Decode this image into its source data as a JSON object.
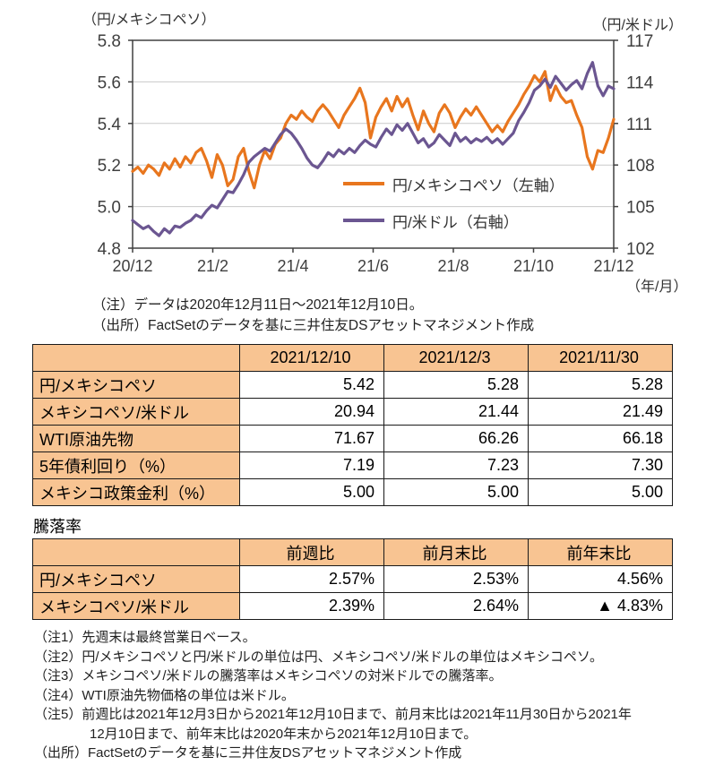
{
  "chart": {
    "left_axis_unit": "（円/メキシコペソ）",
    "right_axis_unit": "（円/米ドル）",
    "x_axis_unit": "（年/月）",
    "note": "（注）データは2020年12月11日～2021年12月10日。",
    "source": "（出所）FactSetのデータを基に三井住友DSアセットマネジメント作成"
  },
  "chart_data": {
    "type": "line",
    "grid": "horizontal",
    "legend_position": "inside-right",
    "x_axis": {
      "tick_labels": [
        "20/12",
        "21/2",
        "21/4",
        "21/6",
        "21/8",
        "21/10",
        "21/12"
      ],
      "unit": "（年/月）"
    },
    "left_axis": {
      "label": "（円/メキシコペソ）",
      "min": 4.8,
      "max": 5.8,
      "tick_values": [
        5.8,
        5.6,
        5.4,
        5.2,
        5.0,
        4.8
      ],
      "tick_labels": [
        "5.8",
        "5.6",
        "5.4",
        "5.2",
        "5.0",
        "4.8"
      ]
    },
    "right_axis": {
      "label": "（円/米ドル）",
      "min": 102,
      "max": 117,
      "tick_values": [
        117,
        114,
        111,
        108,
        105,
        102
      ],
      "tick_labels": [
        "117",
        "114",
        "111",
        "108",
        "105",
        "102"
      ]
    },
    "series": [
      {
        "name": "円/メキシコペソ（左軸）",
        "axis": "left",
        "color": "#E8761E",
        "values": [
          5.17,
          5.19,
          5.16,
          5.2,
          5.18,
          5.15,
          5.21,
          5.18,
          5.23,
          5.19,
          5.24,
          5.21,
          5.26,
          5.28,
          5.22,
          5.14,
          5.25,
          5.2,
          5.1,
          5.13,
          5.24,
          5.28,
          5.17,
          5.09,
          5.2,
          5.27,
          5.23,
          5.3,
          5.33,
          5.4,
          5.44,
          5.42,
          5.46,
          5.43,
          5.41,
          5.46,
          5.49,
          5.46,
          5.42,
          5.38,
          5.44,
          5.48,
          5.52,
          5.57,
          5.5,
          5.33,
          5.43,
          5.48,
          5.52,
          5.46,
          5.53,
          5.48,
          5.52,
          5.44,
          5.37,
          5.46,
          5.4,
          5.36,
          5.45,
          5.49,
          5.45,
          5.38,
          5.43,
          5.47,
          5.44,
          5.48,
          5.44,
          5.4,
          5.36,
          5.39,
          5.36,
          5.41,
          5.45,
          5.49,
          5.54,
          5.58,
          5.63,
          5.6,
          5.65,
          5.51,
          5.58,
          5.53,
          5.5,
          5.51,
          5.44,
          5.38,
          5.24,
          5.18,
          5.27,
          5.26,
          5.33,
          5.42
        ]
      },
      {
        "name": "円/米ドル（右軸）",
        "axis": "right",
        "color": "#6B5691",
        "values": [
          104.0,
          103.7,
          103.4,
          103.6,
          103.2,
          102.9,
          103.4,
          103.1,
          103.6,
          103.5,
          103.8,
          104.0,
          104.4,
          104.2,
          104.7,
          105.1,
          104.9,
          105.5,
          106.1,
          106.0,
          106.6,
          107.3,
          108.2,
          108.6,
          108.9,
          109.2,
          109.0,
          109.6,
          110.2,
          110.6,
          110.3,
          109.8,
          109.2,
          108.5,
          108.0,
          107.8,
          108.3,
          108.9,
          108.6,
          109.1,
          108.8,
          109.2,
          108.9,
          109.4,
          109.8,
          109.5,
          109.3,
          110.0,
          110.6,
          110.2,
          110.9,
          110.5,
          111.0,
          110.3,
          109.6,
          109.9,
          109.3,
          109.6,
          110.2,
          109.8,
          109.4,
          110.3,
          109.7,
          110.0,
          109.6,
          109.9,
          109.7,
          110.0,
          109.6,
          109.9,
          109.5,
          109.9,
          110.3,
          111.2,
          111.8,
          112.5,
          113.4,
          113.7,
          114.2,
          113.6,
          114.4,
          113.9,
          113.4,
          113.8,
          114.1,
          113.5,
          114.6,
          115.4,
          113.7,
          113.0,
          113.7,
          113.5
        ]
      }
    ]
  },
  "table1": {
    "headers": [
      "",
      "2021/12/10",
      "2021/12/3",
      "2021/11/30"
    ],
    "rows": [
      [
        "円/メキシコペソ",
        "5.42",
        "5.28",
        "5.28"
      ],
      [
        "メキシコペソ/米ドル",
        "20.94",
        "21.44",
        "21.49"
      ],
      [
        "WTI原油先物",
        "71.67",
        "66.26",
        "66.18"
      ],
      [
        "5年債利回り（%）",
        "7.19",
        "7.23",
        "7.30"
      ],
      [
        "メキシコ政策金利（%）",
        "5.00",
        "5.00",
        "5.00"
      ]
    ]
  },
  "table2_title": "騰落率",
  "table2": {
    "headers": [
      "",
      "前週比",
      "前月末比",
      "前年末比"
    ],
    "rows": [
      [
        "円/メキシコペソ",
        "2.57%",
        "2.53%",
        "4.56%"
      ],
      [
        "メキシコペソ/米ドル",
        "2.39%",
        "2.64%",
        "▲ 4.83%"
      ]
    ]
  },
  "footnotes": [
    {
      "text": "（注1）先週末は最終営業日ベース。",
      "indent": false
    },
    {
      "text": "（注2）円/メキシコペソと円/米ドルの単位は円、メキシコペソ/米ドルの単位はメキシコペソ。",
      "indent": false
    },
    {
      "text": "（注3）メキシコペソ/米ドルの騰落率はメキシコペソの対米ドルでの騰落率。",
      "indent": false
    },
    {
      "text": "（注4）WTI原油先物価格の単位は米ドル。",
      "indent": false
    },
    {
      "text": "（注5）前週比は2021年12月3日から2021年12月10日まで、前月末比は2021年11月30日から2021年",
      "indent": false
    },
    {
      "text": "12月10日まで、前年末比は2020年末から2021年12月10日まで。",
      "indent": true
    },
    {
      "text": "（出所）FactSetのデータを基に三井住友DSアセットマネジメント作成",
      "indent": false
    }
  ]
}
